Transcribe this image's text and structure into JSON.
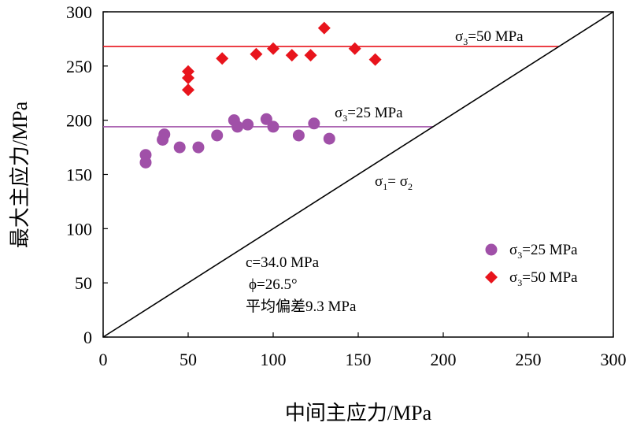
{
  "chart_data": {
    "type": "scatter",
    "xlabel": "中间主应力/MPa",
    "ylabel": "最大主应力/MPa",
    "xlim": [
      0,
      300
    ],
    "ylim": [
      0,
      300
    ],
    "x_ticks": [
      0,
      50,
      100,
      150,
      200,
      250,
      300
    ],
    "y_ticks": [
      0,
      50,
      100,
      150,
      200,
      250,
      300
    ],
    "series": [
      {
        "name": "σ3=25 MPa",
        "marker": "circle",
        "color": "#a050a8",
        "points": [
          [
            25,
            168
          ],
          [
            25,
            161
          ],
          [
            35,
            182
          ],
          [
            36,
            187
          ],
          [
            45,
            175
          ],
          [
            56,
            175
          ],
          [
            67,
            186
          ],
          [
            77,
            200
          ],
          [
            79,
            194
          ],
          [
            85,
            196
          ],
          [
            96,
            201
          ],
          [
            100,
            194
          ],
          [
            115,
            186
          ],
          [
            124,
            197
          ],
          [
            133,
            183
          ]
        ]
      },
      {
        "name": "σ3=50 MPa",
        "marker": "diamond",
        "color": "#e8141c",
        "points": [
          [
            50,
            245
          ],
          [
            50,
            239
          ],
          [
            50,
            228
          ],
          [
            70,
            257
          ],
          [
            90,
            261
          ],
          [
            100,
            266
          ],
          [
            111,
            260
          ],
          [
            122,
            260
          ],
          [
            130,
            285
          ],
          [
            148,
            266
          ],
          [
            160,
            256
          ]
        ]
      }
    ],
    "reference_lines": [
      {
        "name": "σ3=50 MPa",
        "y": 268,
        "x_range": [
          0,
          268
        ],
        "color": "#e8141c"
      },
      {
        "name": "σ3=25 MPa",
        "y": 194,
        "x_range": [
          0,
          194
        ],
        "color": "#a050a8"
      },
      {
        "name": "σ1=σ2",
        "type": "diagonal",
        "from": [
          0,
          0
        ],
        "to": [
          300,
          300
        ],
        "color": "#000000"
      }
    ],
    "annotations": {
      "line50_sub": "3",
      "line50_rest": "=50 MPa",
      "line25_sub": "3",
      "line25_rest": "=25 MPa",
      "diag_sub1": "1",
      "diag_eq": "= σ",
      "diag_sub2": "2",
      "params_c": "c=34.0 MPa",
      "params_phi": "ϕ=26.5°",
      "params_dev": "平均偏差9.3 MPa"
    },
    "legend": {
      "placement": "right-middle",
      "entries": [
        {
          "sub": "3",
          "rest": "=25 MPa"
        },
        {
          "sub": "3",
          "rest": "=50 MPa"
        }
      ]
    }
  }
}
